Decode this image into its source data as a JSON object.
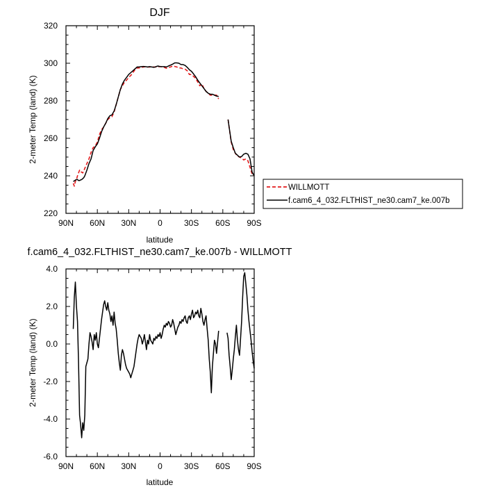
{
  "chart_data": [
    {
      "type": "line",
      "title": "DJF",
      "xlabel": "latitude",
      "ylabel": "2-meter Temp (land) (K)",
      "xlim": [
        90,
        -90
      ],
      "ylim": [
        220,
        320
      ],
      "x_ticks": [
        90,
        60,
        30,
        0,
        -30,
        -60,
        -90
      ],
      "x_tick_labels": [
        "90N",
        "60N",
        "30N",
        "0",
        "30S",
        "60S",
        "90S"
      ],
      "y_ticks": [
        220,
        240,
        260,
        280,
        300,
        320
      ],
      "y_tick_labels": [
        "220",
        "240",
        "260",
        "280",
        "300",
        "320"
      ],
      "legend": {
        "placement": "outside-right"
      },
      "series": [
        {
          "name": "WILLMOTT",
          "color": "#e31a1c",
          "dash": true,
          "x": [
            83,
            82,
            81,
            80,
            79,
            78,
            77,
            76,
            75,
            74,
            73,
            72,
            70,
            68,
            66,
            64,
            62,
            60,
            58,
            56,
            54,
            52,
            50,
            48,
            46,
            44,
            42,
            40,
            38,
            36,
            34,
            32,
            30,
            28,
            26,
            24,
            22,
            20,
            18,
            16,
            14,
            12,
            10,
            8,
            6,
            4,
            2,
            0,
            -2,
            -4,
            -6,
            -8,
            -10,
            -12,
            -14,
            -16,
            -18,
            -20,
            -22,
            -24,
            -26,
            -28,
            -30,
            -32,
            -34,
            -36,
            -38,
            -40,
            -42,
            -44,
            -46,
            -48,
            -50,
            -52,
            -54,
            -56,
            null,
            -65,
            -66,
            -68,
            -70,
            -72,
            -74,
            -76,
            -78,
            -80,
            -82,
            -84,
            -86,
            -88,
            -90
          ],
          "values": [
            236,
            234.5,
            237,
            238,
            240,
            241.5,
            243,
            242,
            242,
            241.5,
            242.5,
            244,
            246.5,
            249,
            252.5,
            255,
            256,
            258,
            262,
            264.5,
            266,
            268,
            270,
            271,
            271.5,
            274,
            278,
            282,
            286,
            288,
            290,
            291,
            292.5,
            293.5,
            295,
            296.5,
            297.5,
            297.5,
            297.7,
            298,
            298.2,
            298,
            298,
            298.2,
            298,
            298,
            298,
            298.3,
            298,
            297.8,
            297.3,
            297.7,
            298,
            298.5,
            298.3,
            298,
            297.5,
            297.5,
            297,
            296.8,
            296,
            294,
            294,
            293,
            292,
            290,
            288,
            289,
            286.5,
            285,
            284,
            283,
            283,
            283,
            283,
            281,
            null,
            270,
            266,
            258,
            254,
            252,
            250.5,
            250,
            249.5,
            248.5,
            249,
            248,
            244.5,
            241,
            240
          ]
        },
        {
          "name": "f.cam6_4_032.FLTHIST_ne30.cam7_ke.007b",
          "color": "#000000",
          "dash": false,
          "x": [
            83,
            82,
            81,
            80,
            79,
            78,
            77,
            76,
            75,
            74,
            73,
            72,
            70,
            68,
            66,
            64,
            62,
            60,
            58,
            56,
            54,
            52,
            50,
            48,
            46,
            44,
            42,
            40,
            38,
            36,
            34,
            32,
            30,
            28,
            26,
            24,
            22,
            20,
            18,
            16,
            14,
            12,
            10,
            8,
            6,
            4,
            2,
            0,
            -2,
            -4,
            -6,
            -8,
            -10,
            -12,
            -14,
            -16,
            -18,
            -20,
            -22,
            -24,
            -26,
            -28,
            -30,
            -32,
            -34,
            -36,
            -38,
            -40,
            -42,
            -44,
            -46,
            -48,
            -50,
            -52,
            -54,
            -56,
            null,
            -65,
            -66,
            -68,
            -70,
            -72,
            -74,
            -76,
            -78,
            -80,
            -82,
            -84,
            -86,
            -88,
            -90
          ],
          "values": [
            237,
            237.3,
            237.7,
            238,
            238,
            237.5,
            237.5,
            237.8,
            238,
            238.5,
            239,
            240,
            243,
            246.5,
            249,
            253.5,
            255.5,
            257,
            260,
            263.5,
            266,
            268,
            270.5,
            272,
            272.5,
            274.5,
            278,
            282,
            286,
            289,
            291,
            292.5,
            294,
            295,
            296,
            297,
            298,
            298,
            298.2,
            298.3,
            298.2,
            298,
            298.2,
            298,
            297.8,
            298.2,
            298.5,
            298.2,
            298.2,
            298.2,
            298,
            298.5,
            299,
            299.5,
            300.2,
            300.2,
            300,
            299.3,
            299.3,
            298.8,
            297.8,
            296.5,
            295.7,
            294.3,
            292.8,
            291,
            289.5,
            288,
            286.5,
            285,
            284,
            283.5,
            283.5,
            283,
            282.5,
            282.3,
            null,
            270,
            266,
            258.5,
            255,
            252,
            251,
            250,
            250.3,
            251.5,
            252,
            251.5,
            249,
            242,
            240
          ]
        }
      ]
    },
    {
      "type": "line",
      "title": "f.cam6_4_032.FLTHIST_ne30.cam7_ke.007b - WILLMOTT",
      "xlabel": "latitude",
      "ylabel": "2-meter Temp (land) (K)",
      "xlim": [
        90,
        -90
      ],
      "ylim": [
        -6,
        4
      ],
      "x_ticks": [
        90,
        60,
        30,
        0,
        -30,
        -60,
        -90
      ],
      "x_tick_labels": [
        "90N",
        "60N",
        "30N",
        "0",
        "30S",
        "60S",
        "90S"
      ],
      "y_ticks": [
        -6,
        -4,
        -2,
        0,
        2,
        4
      ],
      "y_tick_labels": [
        "-6.0",
        "-4.0",
        "-2.0",
        "0.0",
        "2.0",
        "4.0"
      ],
      "series": [
        {
          "color": "#000000",
          "x": [
            83,
            82,
            81,
            80,
            79,
            78,
            77,
            76,
            75,
            74,
            73,
            72,
            71,
            70,
            69,
            68,
            67,
            66,
            65,
            64,
            63,
            62,
            61,
            60,
            59,
            58,
            57,
            56,
            55,
            54,
            53,
            52,
            51,
            50,
            49,
            48,
            47,
            46,
            45,
            44,
            43,
            42,
            41,
            40,
            39,
            38,
            37,
            36,
            35,
            34,
            33,
            32,
            31,
            30,
            29,
            28,
            27,
            26,
            25,
            24,
            23,
            22,
            21,
            20,
            19,
            18,
            17,
            16,
            15,
            14,
            13,
            12,
            11,
            10,
            9,
            8,
            7,
            6,
            5,
            4,
            3,
            2,
            1,
            0,
            -1,
            -2,
            -3,
            -4,
            -5,
            -6,
            -7,
            -8,
            -9,
            -10,
            -11,
            -12,
            -13,
            -14,
            -15,
            -16,
            -17,
            -18,
            -19,
            -20,
            -21,
            -22,
            -23,
            -24,
            -25,
            -26,
            -27,
            -28,
            -29,
            -30,
            -31,
            -32,
            -33,
            -34,
            -35,
            -36,
            -37,
            -38,
            -39,
            -40,
            -41,
            -42,
            -43,
            -44,
            -45,
            -46,
            -47,
            -48,
            -49,
            -50,
            -51,
            -52,
            -53,
            -54,
            -55,
            -56,
            null,
            -64,
            -65,
            -66,
            -67,
            -68,
            -69,
            -70,
            -71,
            -72,
            -73,
            -74,
            -75,
            -76,
            -77,
            -78,
            -79,
            -80,
            -81,
            -82,
            -83,
            -84,
            -85,
            -86,
            -87,
            -88,
            -89,
            -90
          ],
          "values": [
            0.8,
            2.5,
            3.3,
            2.0,
            1.2,
            -1.0,
            -3.8,
            -4.3,
            -5.0,
            -4.2,
            -4.6,
            -3.8,
            -1.2,
            -1.0,
            -0.8,
            0.0,
            0.6,
            0.4,
            0.1,
            -0.3,
            0.5,
            0.2,
            0.6,
            0.0,
            -0.2,
            0.3,
            0.8,
            1.3,
            1.7,
            2.1,
            2.3,
            2.0,
            1.8,
            2.2,
            1.8,
            1.6,
            1.2,
            1.5,
            1.0,
            1.7,
            1.1,
            0.8,
            0.2,
            -0.5,
            -1.0,
            -1.4,
            -0.6,
            -0.3,
            -0.5,
            -0.8,
            -1.1,
            -1.3,
            -1.4,
            -1.5,
            -1.6,
            -1.8,
            -1.6,
            -1.4,
            -1.2,
            -0.8,
            -0.4,
            0.0,
            0.3,
            0.5,
            0.4,
            0.3,
            0.0,
            0.2,
            0.5,
            0.1,
            -0.3,
            0.2,
            0.0,
            0.5,
            0.2,
            0.1,
            0.0,
            0.3,
            0.2,
            0.4,
            0.3,
            0.5,
            0.4,
            0.6,
            0.3,
            0.5,
            0.8,
            1.0,
            0.9,
            1.1,
            1.0,
            1.2,
            1.1,
            0.9,
            1.0,
            1.3,
            1.1,
            0.8,
            0.5,
            0.7,
            0.9,
            1.0,
            1.2,
            1.1,
            1.3,
            1.2,
            1.4,
            1.5,
            1.2,
            1.1,
            1.4,
            1.5,
            1.3,
            1.6,
            1.8,
            1.4,
            1.5,
            1.7,
            1.6,
            1.8,
            1.5,
            1.4,
            1.9,
            1.6,
            1.2,
            1.0,
            1.3,
            1.5,
            0.8,
            0.2,
            -0.8,
            -1.5,
            -2.6,
            -1.2,
            -0.5,
            0.2,
            0.0,
            -0.5,
            0.1,
            0.7,
            null,
            0.6,
            0.3,
            -0.6,
            -1.2,
            -1.9,
            -1.4,
            -0.8,
            -0.3,
            0.4,
            1.0,
            0.2,
            -0.3,
            -0.6,
            0.3,
            1.2,
            2.5,
            3.6,
            3.8,
            3.2,
            2.6,
            1.8,
            1.2,
            0.7,
            0.2,
            -0.4,
            -0.9,
            -1.3
          ]
        }
      ]
    }
  ]
}
